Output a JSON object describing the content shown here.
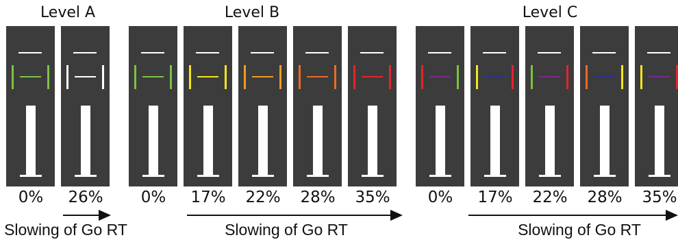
{
  "levels": [
    {
      "title": "Level A",
      "caption": "Slowing of Go RT",
      "panels": [
        {
          "percent": "0%",
          "bracket_left": "#7cc242",
          "bracket_right": "#7cc242",
          "line": "#7cc242"
        },
        {
          "percent": "26%",
          "bracket_left": "#ffffff",
          "bracket_right": "#ffffff",
          "line": "#ffffff"
        }
      ]
    },
    {
      "title": "Level B",
      "caption": "Slowing of Go RT",
      "panels": [
        {
          "percent": "0%",
          "bracket_left": "#7cc242",
          "bracket_right": "#7cc242",
          "line": "#7cc242"
        },
        {
          "percent": "17%",
          "bracket_left": "#f5e61c",
          "bracket_right": "#f5e61c",
          "line": "#f5e61c"
        },
        {
          "percent": "22%",
          "bracket_left": "#f39c1f",
          "bracket_right": "#f39c1f",
          "line": "#f39c1f"
        },
        {
          "percent": "28%",
          "bracket_left": "#ee6a24",
          "bracket_right": "#ee6a24",
          "line": "#ee6a24"
        },
        {
          "percent": "35%",
          "bracket_left": "#e4252a",
          "bracket_right": "#e4252a",
          "line": "#e4252a"
        }
      ]
    },
    {
      "title": "Level C",
      "caption": "Slowing of Go RT",
      "panels": [
        {
          "percent": "0%",
          "bracket_left": "#e4252a",
          "bracket_right": "#7cc242",
          "line": "#7b2a8e"
        },
        {
          "percent": "17%",
          "bracket_left": "#f5e61c",
          "bracket_right": "#e4252a",
          "line": "#2e3192"
        },
        {
          "percent": "22%",
          "bracket_left": "#7cc242",
          "bracket_right": "#e4252a",
          "line": "#7b2a8e"
        },
        {
          "percent": "28%",
          "bracket_left": "#ee6a24",
          "bracket_right": "#f5e61c",
          "line": "#2e3192"
        },
        {
          "percent": "35%",
          "bracket_left": "#f5e61c",
          "bracket_right": "#e4252a",
          "line": "#7b2a8e"
        }
      ]
    }
  ],
  "colors": {
    "panel_bg": "#3c3c3c",
    "marker": "#ffffff",
    "text": "#111111",
    "arrow": "#111111"
  }
}
